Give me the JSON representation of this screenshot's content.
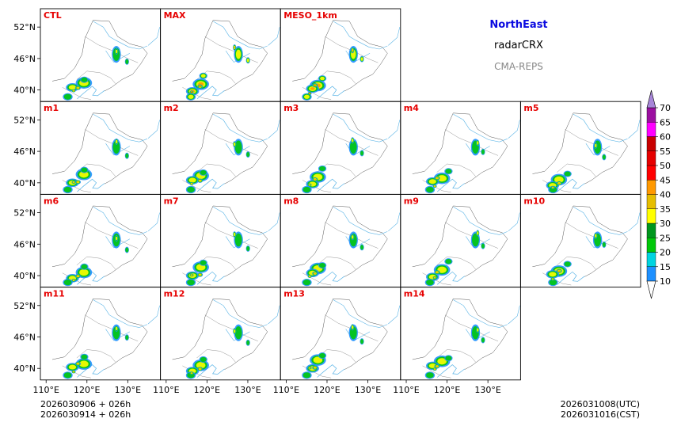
{
  "header": {
    "region": "NorthEast",
    "variable": "radarCRX",
    "system": "CMA-REPS",
    "region_color": "#0a0ae0",
    "system_color": "#888888"
  },
  "footer": {
    "init_utc": "2026030906  +  026h",
    "init_cst": "2026030914  +  026h",
    "valid_utc": "2026031008(UTC)",
    "valid_cst": "2026031016(CST)"
  },
  "chart_data": {
    "type": "heatmap",
    "title": "NorthEast radarCRX CMA-REPS",
    "panels": [
      [
        "CTL",
        "MAX",
        "MESO_1km",
        null,
        null
      ],
      [
        "m1",
        "m2",
        "m3",
        "m4",
        "m5"
      ],
      [
        "m6",
        "m7",
        "m8",
        "m9",
        "m10"
      ],
      [
        "m11",
        "m12",
        "m13",
        "m14",
        null
      ]
    ],
    "x_ticks": [
      "110°E",
      "120°E",
      "130°E"
    ],
    "x_tick_values": [
      110,
      120,
      130
    ],
    "y_ticks": [
      "52°N",
      "46°N",
      "40°N"
    ],
    "y_tick_values": [
      52,
      46,
      40
    ],
    "lon_range": [
      108.6,
      138.0
    ],
    "lat_range": [
      37.8,
      55.5
    ],
    "colorbar": {
      "levels": [
        "10",
        "15",
        "20",
        "25",
        "30",
        "35",
        "40",
        "45",
        "50",
        "55",
        "60",
        "65",
        "70"
      ],
      "colors": [
        "#1e90ff",
        "#00d4e0",
        "#00c80a",
        "#00961e",
        "#ffff00",
        "#e6be00",
        "#ff9900",
        "#ff0000",
        "#e60000",
        "#c80000",
        "#ff00ff",
        "#9b0fa0",
        "#a786d8"
      ],
      "extend": "both"
    },
    "label_color": "#e60000"
  }
}
